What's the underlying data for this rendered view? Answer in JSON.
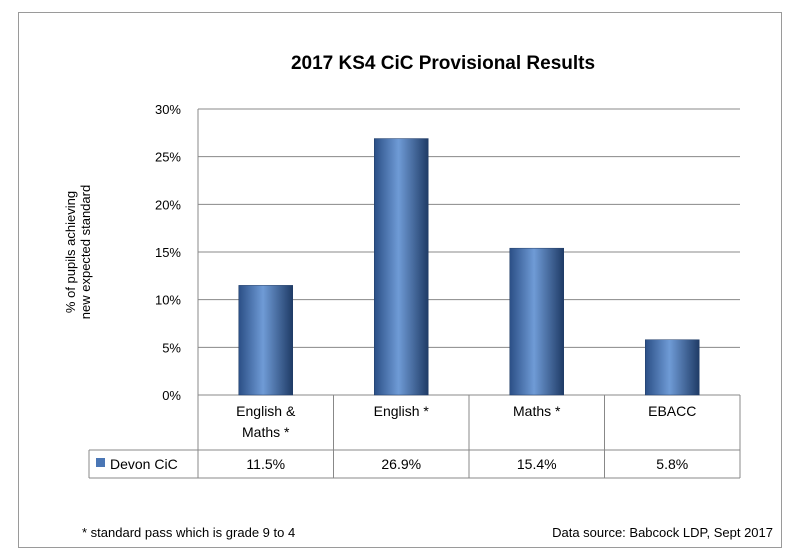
{
  "chart_data": {
    "type": "bar",
    "title": "2017 KS4 CiC Provisional Results",
    "ylabel": [
      "% of pupils achieving",
      "new expected standard"
    ],
    "xlabel": "",
    "categories": [
      [
        "English &",
        "Maths *"
      ],
      [
        "English *"
      ],
      [
        "Maths *"
      ],
      [
        "EBACC"
      ]
    ],
    "series": [
      {
        "name": "Devon CiC",
        "values": [
          11.5,
          26.9,
          15.4,
          5.8
        ],
        "labels": [
          "11.5%",
          "26.9%",
          "15.4%",
          "5.8%"
        ],
        "color": "#4a76b5"
      }
    ],
    "ylim": [
      0,
      30
    ],
    "yticks": [
      0,
      5,
      10,
      15,
      20,
      25,
      30
    ],
    "ytick_labels": [
      "0%",
      "5%",
      "10%",
      "15%",
      "20%",
      "25%",
      "30%"
    ],
    "grid": true,
    "legend": "data-table",
    "data_table": true
  },
  "footnote": "* standard pass which is  grade  9 to 4",
  "source": "Data source: Babcock LDP, Sept 2017"
}
